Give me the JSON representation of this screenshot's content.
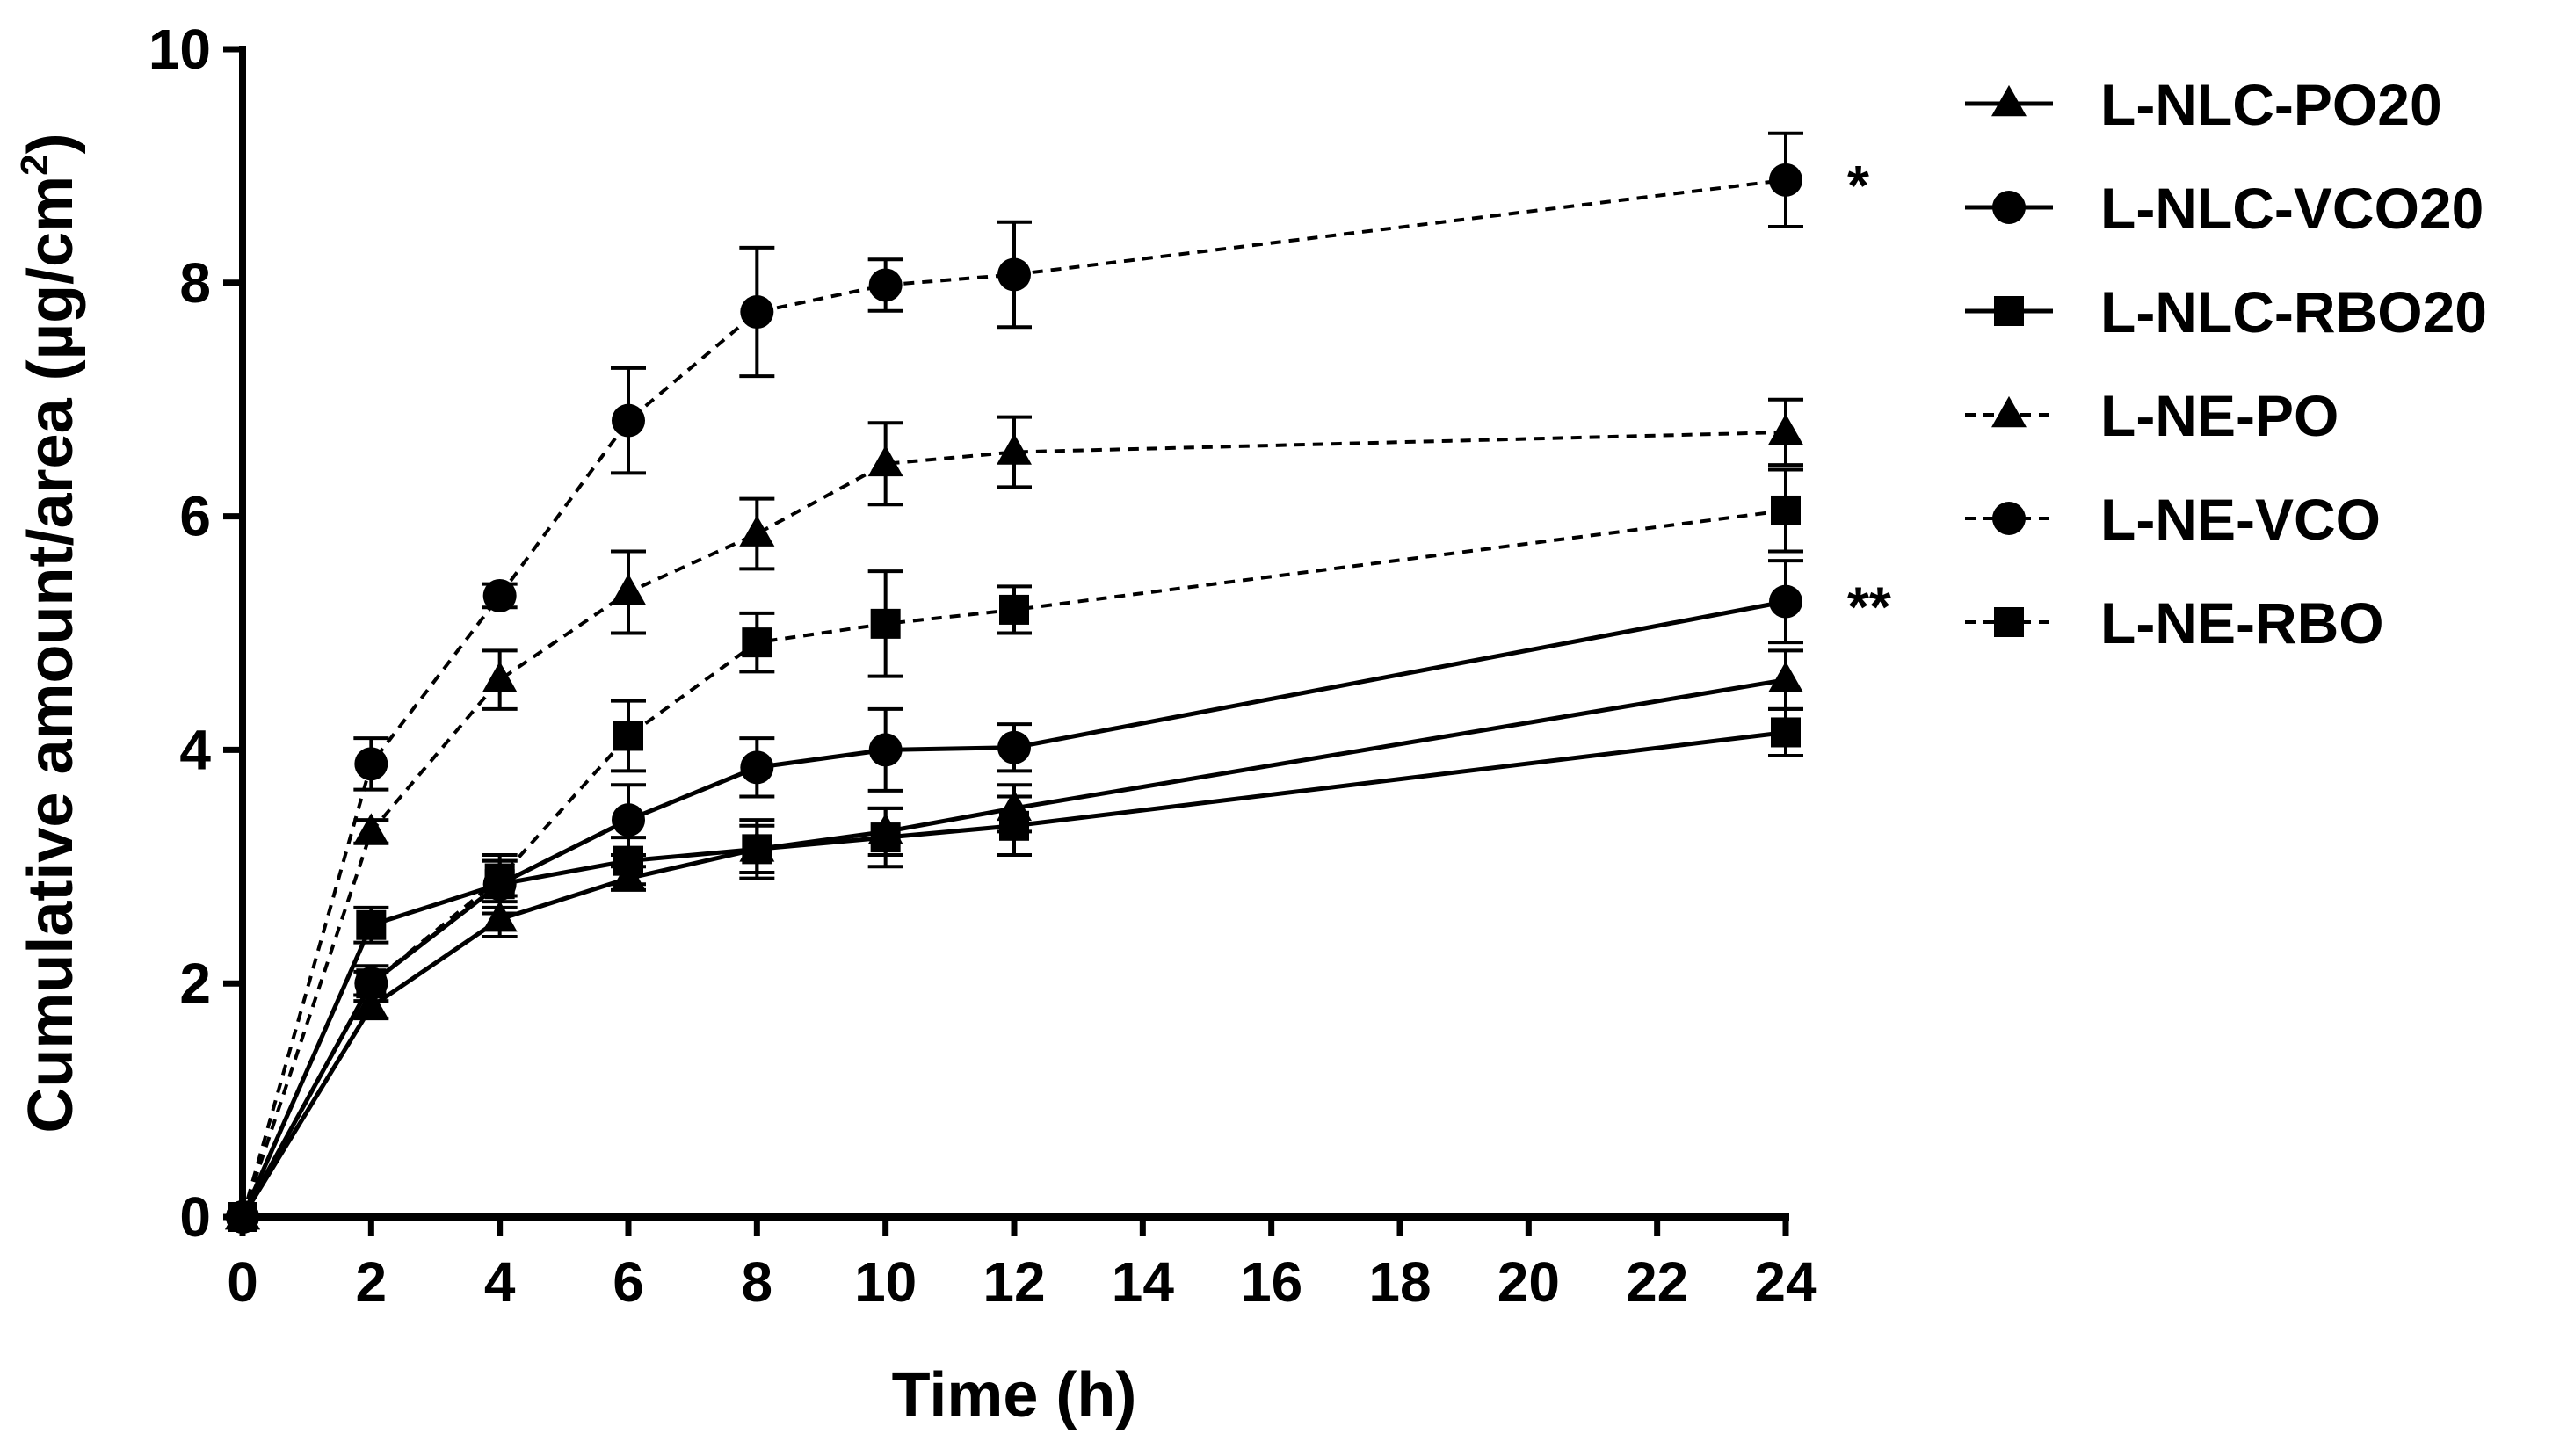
{
  "chart_data": {
    "type": "line",
    "title": "",
    "xlabel": "Time (h)",
    "ylabel_main": "Cumulative amount/area (µg/cm",
    "ylabel_sup": "2",
    "ylabel_close": ")",
    "xlim": [
      0,
      24
    ],
    "ylim": [
      0,
      10
    ],
    "xticks": [
      0,
      2,
      4,
      6,
      8,
      10,
      12,
      14,
      16,
      18,
      20,
      22,
      24
    ],
    "yticks": [
      0,
      2,
      4,
      6,
      8,
      10
    ],
    "grid": false,
    "legend_position": "top-right",
    "x": [
      0,
      2,
      4,
      6,
      8,
      10,
      12,
      24
    ],
    "series": [
      {
        "name": "L-NLC-PO20",
        "marker": "triangle",
        "line": "solid",
        "values": [
          0,
          1.8,
          2.55,
          2.9,
          3.15,
          3.3,
          3.5,
          4.6
        ],
        "errors": [
          0,
          0.1,
          0.15,
          0.1,
          0.2,
          0.2,
          0.2,
          0.25
        ]
      },
      {
        "name": "L-NLC-VCO20",
        "marker": "circle",
        "line": "solid",
        "values": [
          0,
          2.0,
          2.85,
          3.4,
          3.85,
          4.0,
          4.02,
          5.27
        ],
        "errors": [
          0,
          0.1,
          0.2,
          0.3,
          0.25,
          0.35,
          0.2,
          0.35
        ]
      },
      {
        "name": "L-NLC-RBO20",
        "marker": "square",
        "line": "solid",
        "values": [
          0,
          2.5,
          2.85,
          3.05,
          3.15,
          3.25,
          3.35,
          4.15
        ],
        "errors": [
          0,
          0.15,
          0.25,
          0.2,
          0.25,
          0.25,
          0.25,
          0.2
        ]
      },
      {
        "name": "L-NE-PO",
        "marker": "triangle",
        "line": "dashed",
        "values": [
          0,
          3.3,
          4.6,
          5.35,
          5.85,
          6.45,
          6.55,
          6.72
        ],
        "errors": [
          0,
          0.1,
          0.25,
          0.35,
          0.3,
          0.35,
          0.3,
          0.28
        ]
      },
      {
        "name": "L-NE-VCO",
        "marker": "circle",
        "line": "dashed",
        "values": [
          0,
          3.88,
          5.32,
          6.82,
          7.75,
          7.98,
          8.07,
          8.88
        ],
        "errors": [
          0,
          0.22,
          0.1,
          0.45,
          0.55,
          0.22,
          0.45,
          0.4
        ]
      },
      {
        "name": "L-NE-RBO",
        "marker": "square",
        "line": "dashed",
        "values": [
          0,
          2.0,
          2.9,
          4.12,
          4.92,
          5.08,
          5.2,
          6.05
        ],
        "errors": [
          0,
          0.15,
          0.15,
          0.3,
          0.25,
          0.45,
          0.2,
          0.35
        ]
      }
    ],
    "annotations": [
      {
        "text": "*",
        "x": 24,
        "y": 8.88
      },
      {
        "text": "**",
        "x": 24,
        "y": 5.27
      }
    ]
  }
}
